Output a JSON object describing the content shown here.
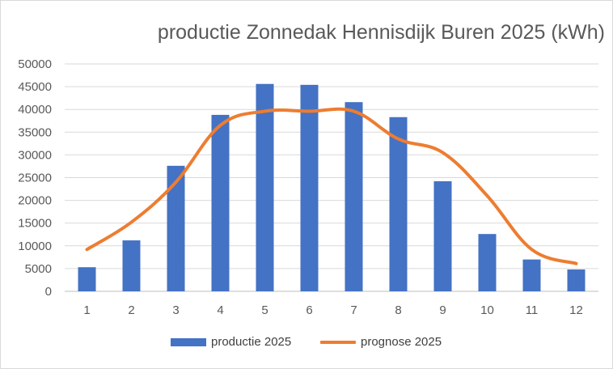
{
  "chart_data": {
    "type": "bar",
    "title": "productie Zonnedak Hennisdijk Buren 2025 (kWh)",
    "categories": [
      "1",
      "2",
      "3",
      "4",
      "5",
      "6",
      "7",
      "8",
      "9",
      "10",
      "11",
      "12"
    ],
    "ylim": [
      0,
      50000
    ],
    "yticks": [
      0,
      5000,
      10000,
      15000,
      20000,
      25000,
      30000,
      35000,
      40000,
      45000,
      50000
    ],
    "grid": true,
    "legend_position": "bottom",
    "series": [
      {
        "name": "productie 2025",
        "kind": "bar",
        "color": "#4472c4",
        "values": [
          5300,
          11200,
          27600,
          38800,
          45600,
          45400,
          41600,
          38300,
          24200,
          12600,
          7000,
          4800
        ]
      },
      {
        "name": "prognose 2025",
        "kind": "line",
        "color": "#ed7d31",
        "values": [
          9200,
          15200,
          24000,
          36500,
          39600,
          39600,
          39600,
          33500,
          30500,
          21000,
          9200,
          6100
        ]
      }
    ]
  }
}
